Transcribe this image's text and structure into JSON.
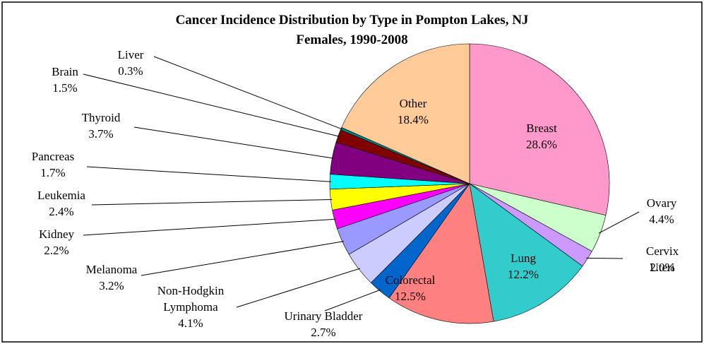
{
  "chart_data": {
    "type": "pie",
    "title": "Cancer Incidence Distribution by Type in Pompton Lakes, NJ",
    "subtitle": "Females, 1990-2008",
    "categories": [
      "Breast",
      "Ovary",
      "Cervix Uteri",
      "Lung",
      "Colorectal",
      "Urinary Bladder",
      "Non-Hodgkin Lymphoma",
      "Melanoma",
      "Kidney",
      "Leukemia",
      "Pancreas",
      "Thyroid",
      "Brain",
      "Liver",
      "Other"
    ],
    "values": [
      28.6,
      4.4,
      2.0,
      12.2,
      12.5,
      2.7,
      4.1,
      3.2,
      2.2,
      2.4,
      1.7,
      3.7,
      1.5,
      0.3,
      18.4
    ],
    "value_labels": [
      "28.6%",
      "4.4%",
      "2.0%",
      "12.2%",
      "12.5%",
      "2.7%",
      "4.1%",
      "3.2%",
      "2.2%",
      "2.4%",
      "1.7%",
      "3.7%",
      "1.5%",
      "0.3%",
      "18.4%"
    ],
    "colors": [
      "#ff99cc",
      "#ccffcc",
      "#cc99ff",
      "#33cccc",
      "#ff8080",
      "#0066cc",
      "#ccccff",
      "#9999ff",
      "#ff00ff",
      "#ffff00",
      "#00ffff",
      "#800080",
      "#800000",
      "#008080",
      "#ffcc99"
    ]
  }
}
